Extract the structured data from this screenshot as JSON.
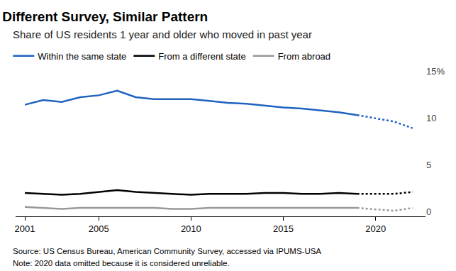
{
  "chart_data": {
    "type": "line",
    "title": "Different Survey, Similar Pattern",
    "subtitle": "Share of US residents 1 year and older who moved in past year",
    "x": [
      2001,
      2002,
      2003,
      2004,
      2005,
      2006,
      2007,
      2008,
      2009,
      2010,
      2011,
      2012,
      2013,
      2014,
      2015,
      2016,
      2017,
      2018,
      2019,
      2020,
      2021,
      2022
    ],
    "series": [
      {
        "name": "Within the same state",
        "color": "#1f63c0",
        "values": [
          11.4,
          11.9,
          11.7,
          12.2,
          12.4,
          12.9,
          12.2,
          12.0,
          12.0,
          12.0,
          11.8,
          11.6,
          11.5,
          11.3,
          11.1,
          11.0,
          10.8,
          10.6,
          10.3,
          null,
          9.6,
          8.9
        ]
      },
      {
        "name": "From a different state",
        "color": "#000000",
        "values": [
          2.0,
          1.9,
          1.8,
          1.9,
          2.1,
          2.3,
          2.1,
          2.0,
          1.9,
          1.8,
          1.9,
          1.9,
          1.9,
          2.0,
          2.0,
          1.9,
          1.9,
          2.0,
          1.9,
          null,
          1.9,
          2.1
        ]
      },
      {
        "name": "From abroad",
        "color": "#999999",
        "values": [
          0.5,
          0.4,
          0.3,
          0.4,
          0.4,
          0.4,
          0.4,
          0.4,
          0.3,
          0.3,
          0.4,
          0.4,
          0.4,
          0.4,
          0.4,
          0.4,
          0.4,
          0.4,
          0.4,
          null,
          0.1,
          0.4
        ]
      }
    ],
    "xlim": [
      2000.5,
      2022.7
    ],
    "xticks": [
      2001,
      2005,
      2010,
      2015,
      2020
    ],
    "ylim": [
      -0.5,
      15
    ],
    "yticks": [
      0,
      5,
      10,
      {
        "value": 15,
        "label": "15%"
      }
    ],
    "grid": false,
    "legend": "top left",
    "annotations": [
      "Source: US Census Bureau, American Community Survey, accessed via IPUMS-USA",
      "Note: 2020 data omitted because it is considered unreliable."
    ]
  }
}
